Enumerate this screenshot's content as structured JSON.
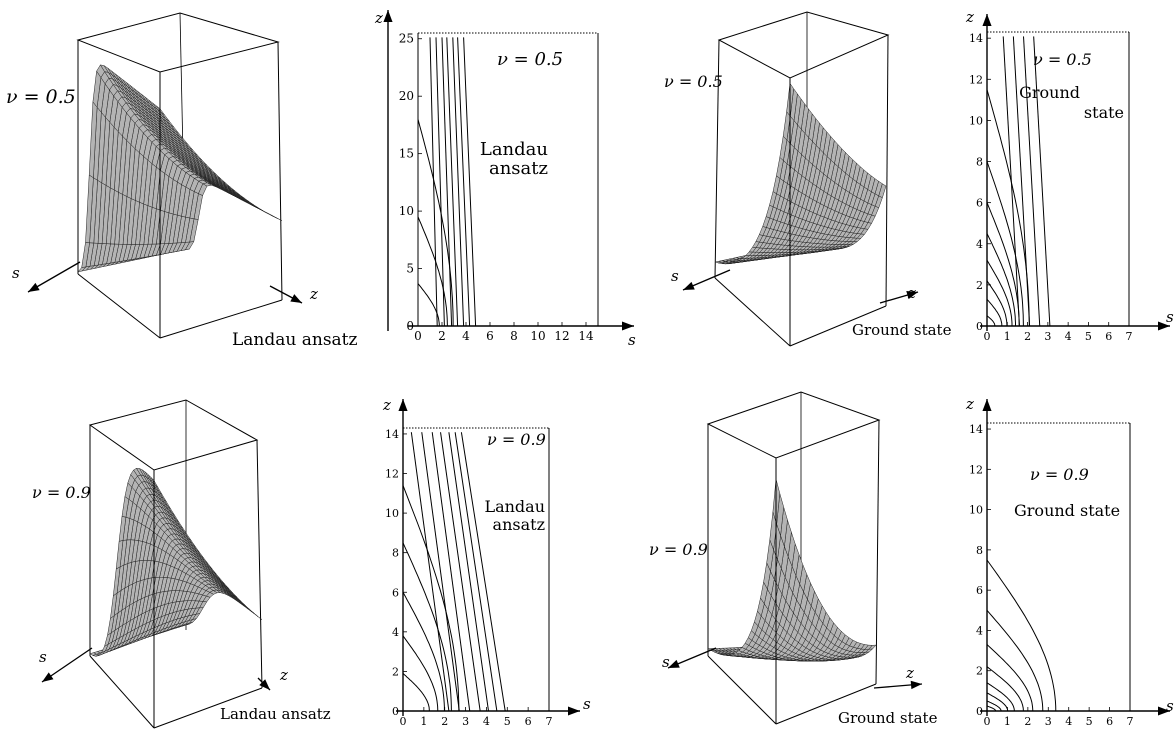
{
  "chart_data": [
    {
      "id": "tl3d",
      "type": "surface",
      "view": "3d",
      "nu_label": "ν = 0.5",
      "caption": "Landau ansatz",
      "axis_s": "s",
      "axis_z": "z",
      "shape": "landau",
      "grid": true
    },
    {
      "id": "tl2d",
      "type": "contour",
      "nu_label": "ν = 0.5",
      "caption_lines": [
        "Landau",
        "ansatz"
      ],
      "xlabel": "s",
      "ylabel": "z",
      "xlim": [
        0,
        15
      ],
      "ylim": [
        0,
        25.5
      ],
      "xticks": [
        "0",
        "2",
        "4",
        "6",
        "8",
        "10",
        "12",
        "14"
      ],
      "yticks": [
        "0",
        "5",
        "10",
        "15",
        "20",
        "25"
      ],
      "curved_contours": [
        {
          "z0": 3.7,
          "s0": 1.0
        },
        {
          "z0": 9.5,
          "s0": 1.0
        },
        {
          "z0": 18.0,
          "s0": 1.0
        }
      ],
      "straight_contours": [
        {
          "s_bottom": 1.6,
          "s_top": 1.0
        },
        {
          "s_bottom": 2.2,
          "s_top": 1.5
        },
        {
          "s_bottom": 2.8,
          "s_top": 2.0
        },
        {
          "s_bottom": 3.3,
          "s_top": 2.4
        },
        {
          "s_bottom": 3.8,
          "s_top": 2.9
        },
        {
          "s_bottom": 4.3,
          "s_top": 3.3
        },
        {
          "s_bottom": 4.8,
          "s_top": 3.8
        }
      ]
    },
    {
      "id": "tr3d",
      "type": "surface",
      "view": "3d",
      "nu_label": "ν = 0.5",
      "caption": "Ground state",
      "axis_s": "s",
      "axis_z": "z",
      "shape": "ground",
      "grid": true
    },
    {
      "id": "tr2d",
      "type": "contour",
      "nu_label": "ν = 0.5",
      "caption_lines": [
        "Ground",
        "state"
      ],
      "xlabel": "s",
      "ylabel": "z",
      "xlim": [
        0,
        7
      ],
      "ylim": [
        0,
        14.3
      ],
      "xticks": [
        "0",
        "1",
        "2",
        "3",
        "4",
        "5",
        "6",
        "7"
      ],
      "yticks": [
        "0",
        "2",
        "4",
        "6",
        "8",
        "10",
        "12",
        "14"
      ],
      "curved_contours": [
        {
          "z0": 0.5,
          "s0": 0.2
        },
        {
          "z0": 1.3,
          "s0": 0.5
        },
        {
          "z0": 2.2,
          "s0": 0.7
        },
        {
          "z0": 3.2,
          "s0": 0.9
        },
        {
          "z0": 4.5,
          "s0": 1.0
        },
        {
          "z0": 6.0,
          "s0": 1.1
        },
        {
          "z0": 8.0,
          "s0": 1.2
        },
        {
          "z0": 11.5,
          "s0": 1.3
        }
      ],
      "straight_contours": [
        {
          "s_bottom": 1.6,
          "s_top": 0.8
        },
        {
          "s_bottom": 2.1,
          "s_top": 1.3
        },
        {
          "s_bottom": 2.6,
          "s_top": 1.8
        },
        {
          "s_bottom": 3.1,
          "s_top": 2.3
        }
      ]
    },
    {
      "id": "bl3d",
      "type": "surface",
      "view": "3d",
      "nu_label": "ν = 0.9",
      "caption": "Landau ansatz",
      "axis_s": "s",
      "axis_z": "z",
      "shape": "landau09",
      "grid": true
    },
    {
      "id": "bl2d",
      "type": "contour",
      "nu_label": "ν = 0.9",
      "caption_lines": [
        "Landau",
        "ansatz"
      ],
      "xlabel": "s",
      "ylabel": "z",
      "xlim": [
        0,
        7
      ],
      "ylim": [
        0,
        14.3
      ],
      "xticks": [
        "0",
        "1",
        "2",
        "3",
        "4",
        "5",
        "6",
        "7"
      ],
      "yticks": [
        "0",
        "2",
        "4",
        "6",
        "8",
        "10",
        "12",
        "14"
      ],
      "curved_contours": [
        {
          "z0": 1.9,
          "s0": 1.0
        },
        {
          "z0": 3.8,
          "s0": 1.3
        },
        {
          "z0": 6.0,
          "s0": 1.5
        },
        {
          "z0": 8.5,
          "s0": 1.7
        },
        {
          "z0": 11.4,
          "s0": 1.9
        }
      ],
      "straight_contours": [
        {
          "s_bottom": 2.2,
          "s_top": 0.4
        },
        {
          "s_bottom": 2.7,
          "s_top": 0.9
        },
        {
          "s_bottom": 3.2,
          "s_top": 1.4
        },
        {
          "s_bottom": 3.7,
          "s_top": 1.8
        },
        {
          "s_bottom": 4.1,
          "s_top": 2.2
        },
        {
          "s_bottom": 4.5,
          "s_top": 2.5
        },
        {
          "s_bottom": 4.9,
          "s_top": 2.8
        }
      ]
    },
    {
      "id": "br3d",
      "type": "surface",
      "view": "3d",
      "nu_label": "ν = 0.9",
      "caption": "Ground state",
      "axis_s": "s",
      "axis_z": "z",
      "shape": "ground09",
      "grid": true
    },
    {
      "id": "br2d",
      "type": "contour",
      "nu_label": "ν = 0.9",
      "caption_lines": [
        "Ground state"
      ],
      "xlabel": "s",
      "ylabel": "z",
      "xlim": [
        0,
        7
      ],
      "ylim": [
        0,
        14.3
      ],
      "xticks": [
        "0",
        "1",
        "2",
        "3",
        "4",
        "5",
        "6",
        "7"
      ],
      "yticks": [
        "0",
        "2",
        "4",
        "6",
        "8",
        "10",
        "12",
        "14"
      ],
      "curved_contours": [
        {
          "z0": 0.25,
          "s0": 0.25
        },
        {
          "z0": 0.5,
          "s0": 0.5
        },
        {
          "z0": 0.9,
          "s0": 0.8
        },
        {
          "z0": 1.4,
          "s0": 1.1
        },
        {
          "z0": 2.2,
          "s0": 1.5
        },
        {
          "z0": 3.3,
          "s0": 1.9
        },
        {
          "z0": 5.0,
          "s0": 2.3
        },
        {
          "z0": 7.5,
          "s0": 2.8
        }
      ],
      "straight_contours": []
    }
  ]
}
